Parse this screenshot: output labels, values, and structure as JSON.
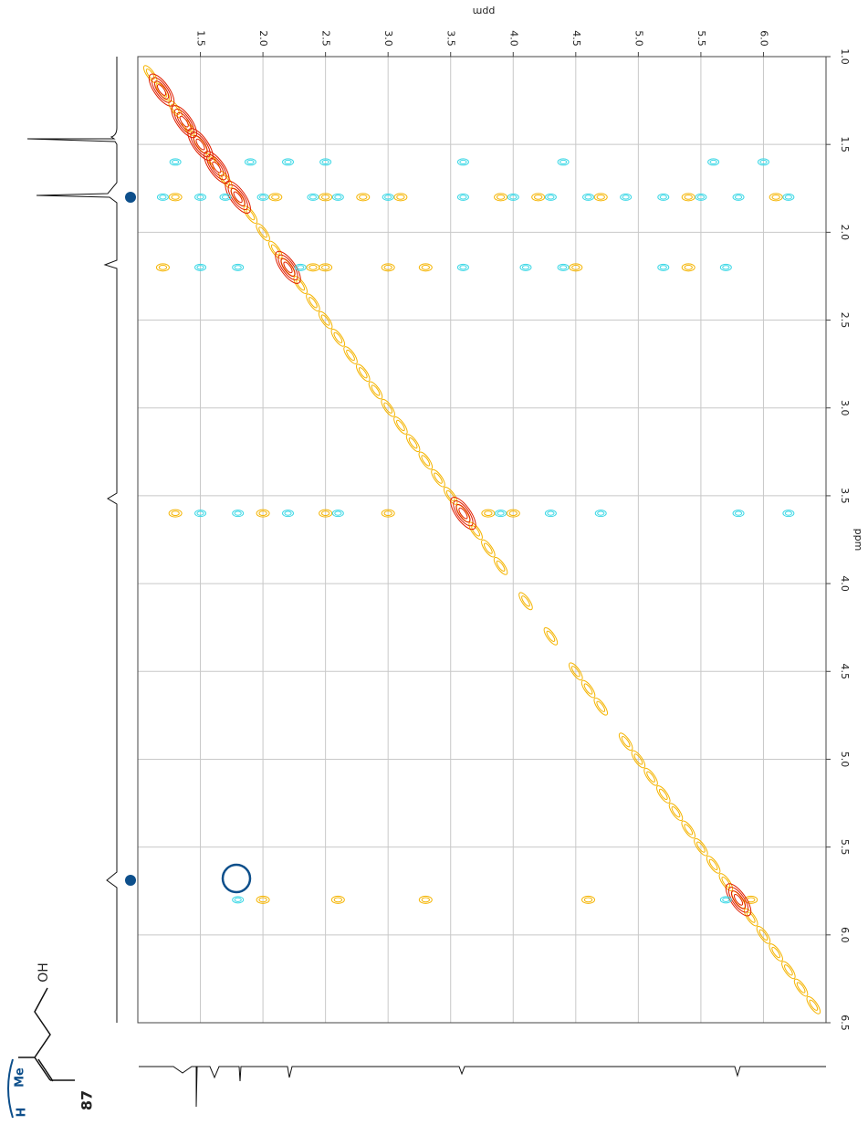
{
  "chart_data": {
    "type": "contour",
    "xlabel": "ppm",
    "ylabel": "ppm",
    "xlim": [
      1.0,
      6.5
    ],
    "ylim": [
      1.0,
      6.5
    ],
    "xticks": [
      1.5,
      {
        "value": 2,
        "label": "2.0"
      },
      2.5,
      {
        "value": 3,
        "label": "3.0"
      },
      3.5,
      {
        "value": 4,
        "label": "4.0"
      },
      4.5,
      {
        "value": 5,
        "label": "5.0"
      },
      5.5,
      {
        "value": 6,
        "label": "6.0"
      }
    ],
    "yticks": [
      {
        "value": 1,
        "label": "1.0"
      },
      1.5,
      {
        "value": 2,
        "label": "2.0"
      },
      2.5,
      {
        "value": 3,
        "label": "3.0"
      },
      3.5,
      {
        "value": 4,
        "label": "4.0"
      },
      4.5,
      {
        "value": 5,
        "label": "5.0"
      },
      5.5,
      {
        "value": 6,
        "label": "6.0"
      },
      6.5
    ],
    "grid": true,
    "series": [
      {
        "color": "#f5b400",
        "x": [
          1.1,
          1.2,
          1.3,
          1.4,
          1.5,
          1.6,
          1.7,
          1.8,
          1.9,
          2.0,
          2.1,
          2.2,
          2.3,
          2.4,
          2.5,
          2.6,
          2.7,
          2.8,
          2.9,
          3.0,
          3.1,
          3.2,
          3.3,
          3.4,
          3.5,
          3.6,
          3.7,
          3.8,
          3.9,
          4.1,
          4.3,
          4.5,
          4.6,
          4.7,
          4.9,
          5.0,
          5.1,
          5.2,
          5.3,
          5.4,
          5.5,
          5.6,
          5.7,
          5.8,
          5.9,
          6.0,
          6.1,
          6.2,
          6.3,
          6.4,
          1.3,
          2.1,
          2.5,
          2.8,
          3.1,
          3.9,
          4.2,
          4.7,
          5.4,
          6.1,
          1.2,
          2.4,
          2.5,
          3.0,
          3.3,
          4.5,
          5.4,
          1.3,
          2.0,
          2.5,
          3.0,
          3.8,
          4.0,
          2.0,
          2.6,
          3.3,
          4.6,
          5.9
        ],
        "y": [
          1.1,
          1.2,
          1.3,
          1.4,
          1.5,
          1.6,
          1.7,
          1.8,
          1.9,
          2.0,
          2.1,
          2.2,
          2.3,
          2.4,
          2.5,
          2.6,
          2.7,
          2.8,
          2.9,
          3.0,
          3.1,
          3.2,
          3.3,
          3.4,
          3.5,
          3.6,
          3.7,
          3.8,
          3.9,
          4.1,
          4.3,
          4.5,
          4.6,
          4.7,
          4.9,
          5.0,
          5.1,
          5.2,
          5.3,
          5.4,
          5.5,
          5.6,
          5.7,
          5.8,
          5.9,
          6.0,
          6.1,
          6.2,
          6.3,
          6.4,
          1.8,
          1.8,
          1.8,
          1.8,
          1.8,
          1.8,
          1.8,
          1.8,
          1.8,
          1.8,
          2.2,
          2.2,
          2.2,
          2.2,
          2.2,
          2.2,
          2.2,
          3.6,
          3.6,
          3.6,
          3.6,
          3.6,
          3.6,
          5.8,
          5.8,
          5.8,
          5.8,
          5.8
        ]
      },
      {
        "color": "#e01e00",
        "x": [
          1.19,
          1.37,
          1.5,
          1.63,
          1.8,
          2.2,
          3.6,
          5.8
        ],
        "y": [
          1.19,
          1.37,
          1.5,
          1.63,
          1.8,
          2.2,
          3.6,
          5.8
        ]
      },
      {
        "color": "#3dd8e6",
        "x": [
          1.2,
          1.5,
          1.7,
          2.0,
          2.4,
          2.6,
          3.0,
          3.6,
          4.0,
          4.3,
          4.6,
          4.9,
          5.2,
          5.5,
          5.8,
          6.2,
          1.5,
          1.8,
          2.3,
          3.6,
          4.1,
          4.4,
          5.2,
          5.7,
          1.5,
          1.8,
          2.2,
          2.6,
          3.9,
          4.3,
          4.7,
          5.8,
          6.2,
          1.8,
          5.7,
          1.3,
          1.9,
          2.2,
          2.5,
          3.6,
          4.4,
          5.6,
          6.0
        ],
        "y": [
          1.8,
          1.8,
          1.8,
          1.8,
          1.8,
          1.8,
          1.8,
          1.8,
          1.8,
          1.8,
          1.8,
          1.8,
          1.8,
          1.8,
          1.8,
          1.8,
          2.2,
          2.2,
          2.2,
          2.2,
          2.2,
          2.2,
          2.2,
          2.2,
          3.6,
          3.6,
          3.6,
          3.6,
          3.6,
          3.6,
          3.6,
          3.6,
          3.6,
          5.8,
          5.8,
          1.6,
          1.6,
          1.6,
          1.6,
          1.6,
          1.6,
          1.6,
          1.6
        ]
      }
    ],
    "structure": {
      "labels": [
        "OH",
        "Me",
        "H",
        "87"
      ]
    }
  }
}
